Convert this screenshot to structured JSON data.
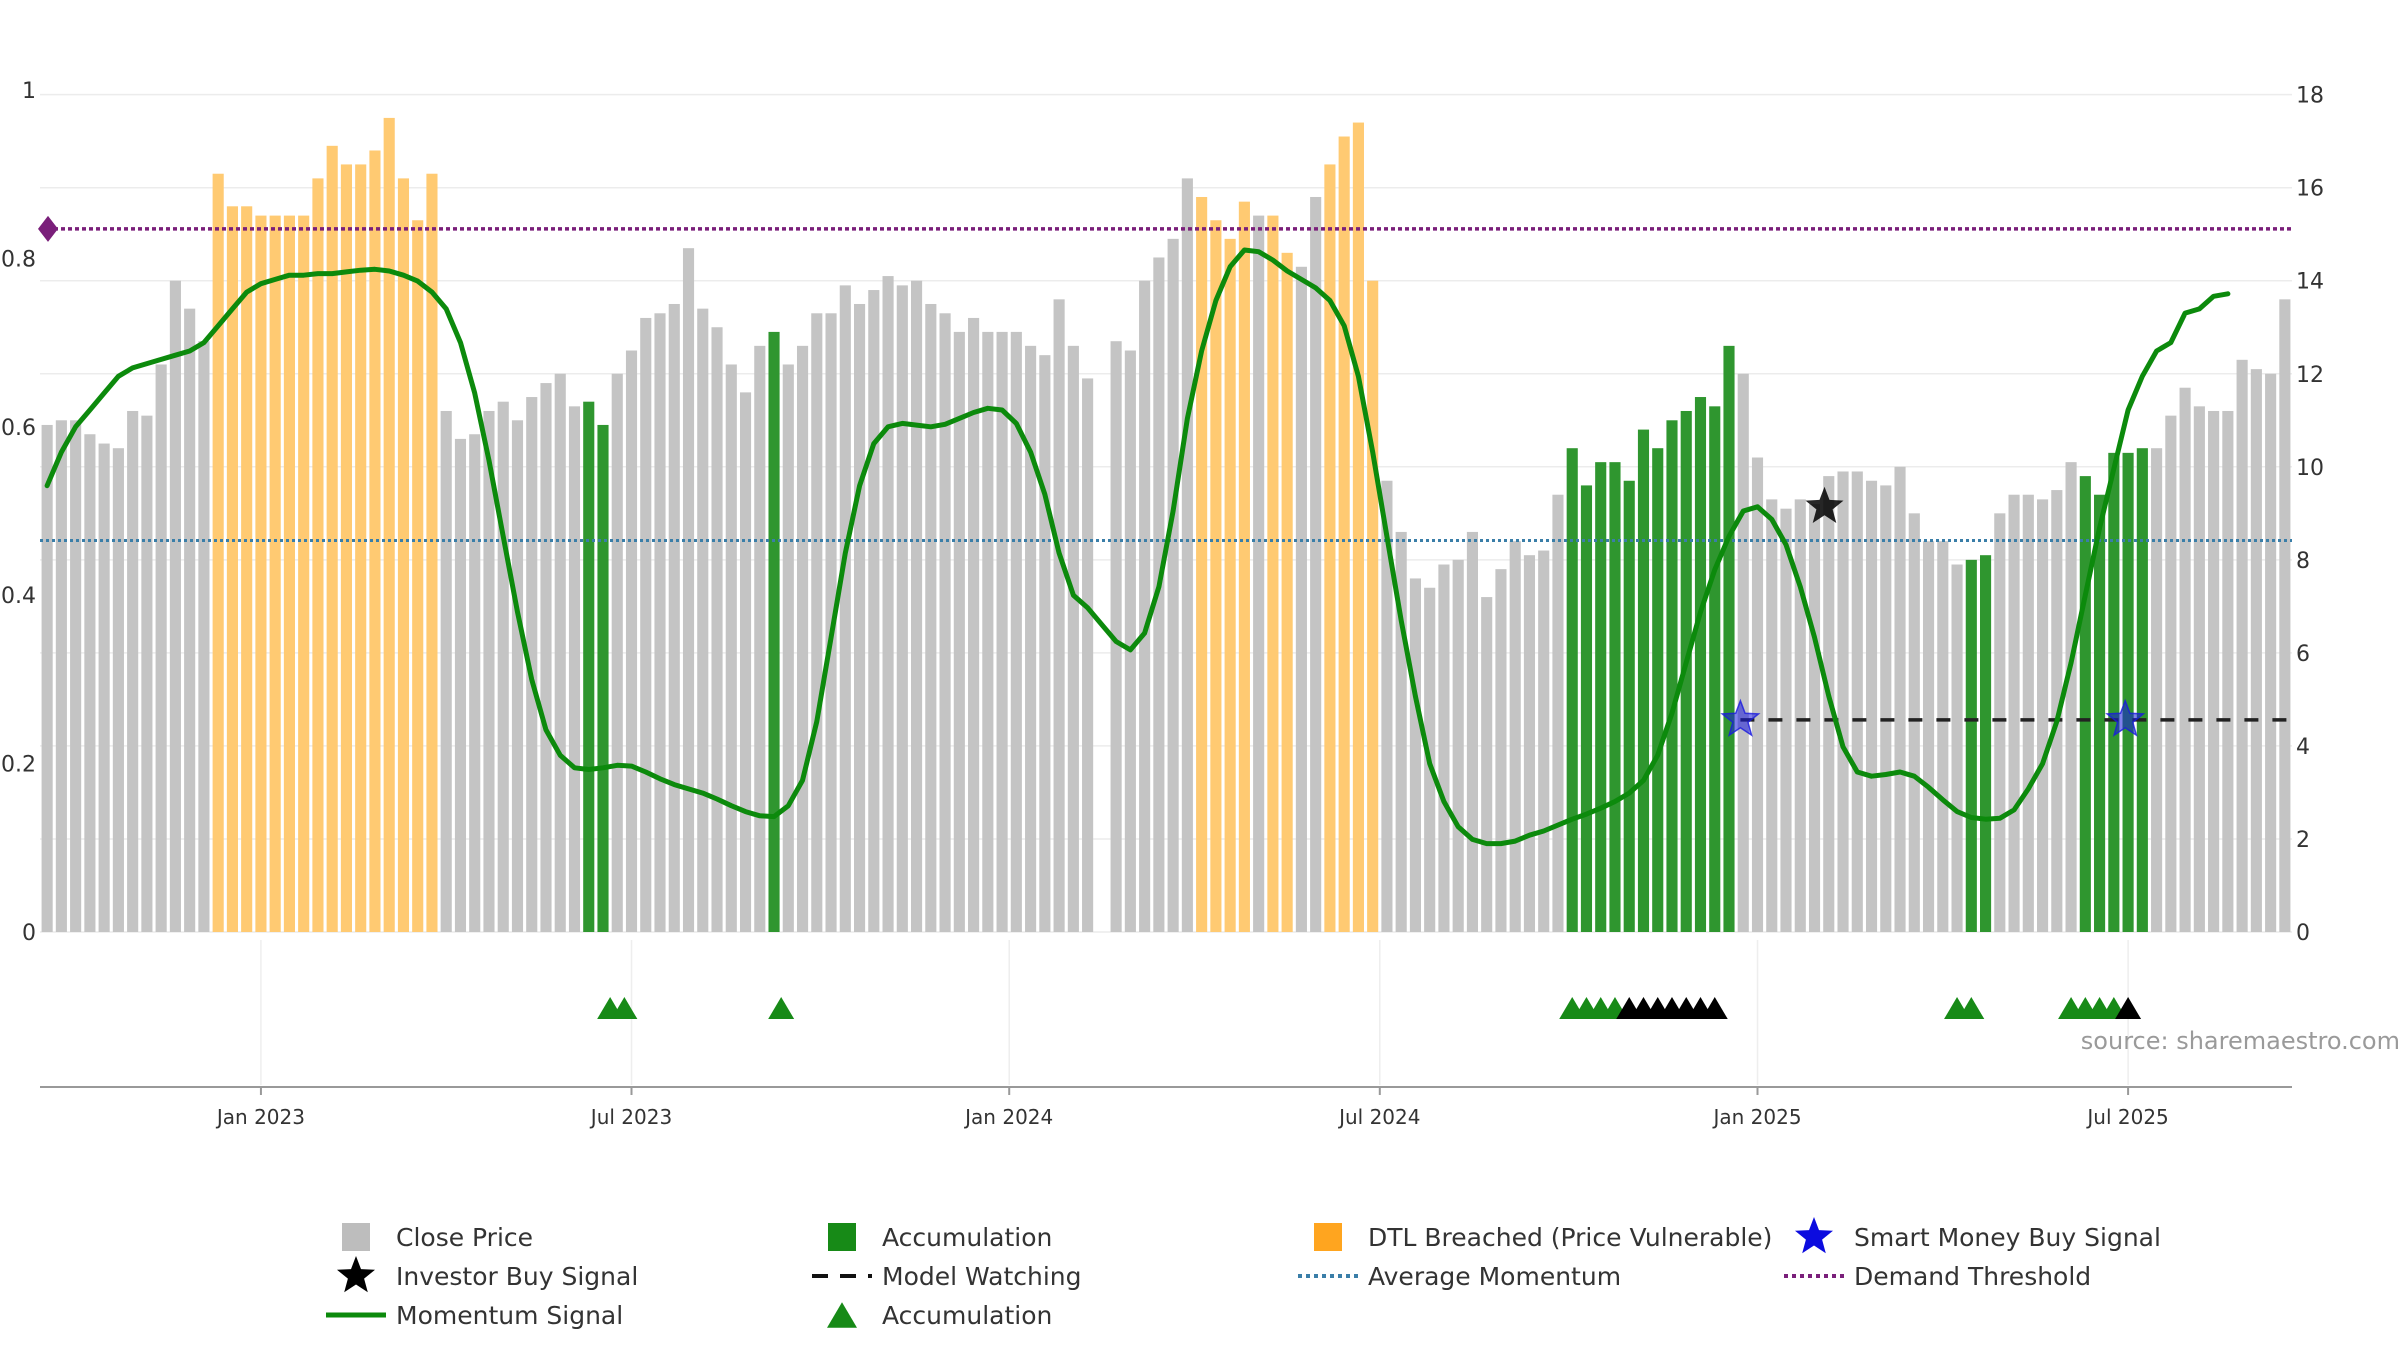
{
  "source_label": "source: sharemaestro.com",
  "colors": {
    "close": "#c4c4c4",
    "accumulation": "#2f962f",
    "dtl": "#ffca72",
    "momentum": "#0c8a0c",
    "avg_momentum": "#3a7ea8",
    "demand": "#7a1f7a",
    "watching": "#222222",
    "smart_money": "#1a1adf",
    "investor": "#000000"
  },
  "chart_data": {
    "type": "bar",
    "title": "",
    "xlabel": "",
    "ylabel": "",
    "left_axis": {
      "ticks": [
        "0",
        "0.2",
        "0.4",
        "0.6",
        "0.8",
        "1"
      ],
      "range": [
        0,
        1
      ]
    },
    "right_axis": {
      "ticks": [
        "0",
        "2",
        "4",
        "6",
        "8",
        "10",
        "12",
        "14",
        "16",
        "18"
      ],
      "range": [
        0,
        18.1
      ]
    },
    "x_ticks": [
      {
        "label": "Jan 2023",
        "index": 15
      },
      {
        "label": "Jul 2023",
        "index": 41
      },
      {
        "label": "Jan 2024",
        "index": 67.5
      },
      {
        "label": "Jul 2024",
        "index": 93.5
      },
      {
        "label": "Jan 2025",
        "index": 120
      },
      {
        "label": "Jul 2025",
        "index": 146
      }
    ],
    "bar_categories": {
      "C": "Close Price",
      "A": "Accumulation",
      "D": "DTL Breached (Price Vulnerable)"
    },
    "close_price": [
      10.9,
      11.0,
      11.0,
      10.7,
      10.5,
      10.4,
      11.2,
      11.1,
      12.2,
      14.0,
      13.4,
      12.7,
      16.3,
      15.6,
      15.6,
      15.4,
      15.4,
      15.4,
      15.4,
      16.2,
      16.9,
      16.5,
      16.5,
      16.8,
      17.5,
      16.2,
      15.3,
      16.3,
      11.2,
      10.6,
      10.7,
      11.2,
      11.4,
      11.0,
      11.5,
      11.8,
      12.0,
      11.3,
      11.4,
      10.9,
      12.0,
      12.5,
      13.2,
      13.3,
      13.5,
      14.7,
      13.4,
      13.0,
      12.2,
      11.6,
      12.6,
      12.9,
      12.2,
      12.6,
      13.3,
      13.3,
      13.9,
      13.5,
      13.8,
      14.1,
      13.9,
      14.0,
      13.5,
      13.3,
      12.9,
      13.2,
      12.9,
      12.9,
      12.9,
      12.6,
      12.4,
      13.6,
      12.6,
      11.9,
      0.0,
      12.7,
      12.5,
      14.0,
      14.5,
      14.9,
      16.2,
      15.8,
      15.3,
      14.9,
      15.7,
      15.4,
      15.4,
      14.6,
      14.3,
      15.8,
      16.5,
      17.1,
      17.4,
      14.0,
      9.7,
      8.6,
      7.6,
      7.4,
      7.9,
      8.0,
      8.6,
      7.2,
      7.8,
      8.4,
      8.1,
      8.2,
      9.4,
      10.4,
      9.6,
      10.1,
      10.1,
      9.7,
      10.8,
      10.4,
      11.0,
      11.2,
      11.5,
      11.3,
      12.6,
      12.0,
      10.2,
      9.3,
      9.1,
      9.3,
      9.2,
      9.8,
      9.9,
      9.9,
      9.7,
      9.6,
      10.0,
      9.0,
      8.4,
      8.4,
      7.9,
      8.0,
      8.1,
      9.0,
      9.4,
      9.4,
      9.3,
      9.5,
      10.1,
      9.8,
      9.4,
      10.3,
      10.3,
      10.4,
      10.4,
      11.1,
      11.7,
      11.3,
      11.2,
      11.2,
      12.3,
      12.1,
      12.0,
      13.6
    ],
    "bar_types": "CCCCCCCCCCCCDDDDDDDDDDDDDDDDCCCCCCCCCCAACCCCCCCCCCCACCCCCCCCCCCCCCCCCCCCCCCCCCCCCDDDDCDDCCDDDDCCCCCCCCCCCCCAAAAAAAAAAAACCCCCCCCCCCCCCCCAACCCCCCAAAAACCCCCCCCCCCC",
    "momentum_signal": [
      0.53,
      0.57,
      0.6,
      0.62,
      0.64,
      0.66,
      0.67,
      0.675,
      0.68,
      0.685,
      0.69,
      0.7,
      0.72,
      0.74,
      0.76,
      0.77,
      0.775,
      0.78,
      0.78,
      0.782,
      0.782,
      0.784,
      0.786,
      0.787,
      0.785,
      0.78,
      0.773,
      0.76,
      0.74,
      0.7,
      0.64,
      0.56,
      0.47,
      0.38,
      0.3,
      0.24,
      0.21,
      0.195,
      0.193,
      0.195,
      0.198,
      0.197,
      0.19,
      0.182,
      0.175,
      0.17,
      0.165,
      0.158,
      0.15,
      0.143,
      0.138,
      0.137,
      0.15,
      0.18,
      0.25,
      0.35,
      0.45,
      0.53,
      0.58,
      0.6,
      0.604,
      0.602,
      0.6,
      0.603,
      0.61,
      0.617,
      0.622,
      0.62,
      0.604,
      0.57,
      0.52,
      0.45,
      0.4,
      0.385,
      0.365,
      0.345,
      0.335,
      0.355,
      0.41,
      0.5,
      0.61,
      0.69,
      0.75,
      0.79,
      0.81,
      0.808,
      0.798,
      0.785,
      0.775,
      0.765,
      0.75,
      0.72,
      0.66,
      0.57,
      0.47,
      0.37,
      0.28,
      0.2,
      0.155,
      0.125,
      0.11,
      0.105,
      0.105,
      0.108,
      0.115,
      0.12,
      0.127,
      0.134,
      0.14,
      0.147,
      0.155,
      0.165,
      0.18,
      0.21,
      0.26,
      0.32,
      0.38,
      0.43,
      0.47,
      0.5,
      0.505,
      0.49,
      0.46,
      0.41,
      0.35,
      0.28,
      0.22,
      0.19,
      0.185,
      0.187,
      0.19,
      0.185,
      0.172,
      0.157,
      0.143,
      0.136,
      0.134,
      0.135,
      0.145,
      0.17,
      0.2,
      0.25,
      0.32,
      0.4,
      0.48,
      0.55,
      0.62,
      0.66,
      0.69,
      0.7,
      0.735,
      0.74,
      0.755,
      0.758
    ],
    "average_momentum": 0.465,
    "demand_threshold": 0.835,
    "model_watching": {
      "from_index": 118.8,
      "to_index": 157.5,
      "value": 0.252
    },
    "smart_money_signals": [
      {
        "index": 118.8,
        "value": 0.252
      },
      {
        "index": 145.8,
        "value": 0.252
      }
    ],
    "investor_buy_signals": [
      {
        "index": 124.7,
        "value": 0.505
      }
    ],
    "accumulation_markers": [
      {
        "index": 39.5,
        "color": "green"
      },
      {
        "index": 40.5,
        "color": "green"
      },
      {
        "index": 51.5,
        "color": "green"
      },
      {
        "index": 107.0,
        "color": "green"
      },
      {
        "index": 108.0,
        "color": "green"
      },
      {
        "index": 109.0,
        "color": "green"
      },
      {
        "index": 110.0,
        "color": "green"
      },
      {
        "index": 111.0,
        "color": "black"
      },
      {
        "index": 112.0,
        "color": "black"
      },
      {
        "index": 113.0,
        "color": "black"
      },
      {
        "index": 114.0,
        "color": "black"
      },
      {
        "index": 115.0,
        "color": "black"
      },
      {
        "index": 116.0,
        "color": "black"
      },
      {
        "index": 117.0,
        "color": "black"
      },
      {
        "index": 134.0,
        "color": "green"
      },
      {
        "index": 135.0,
        "color": "green"
      },
      {
        "index": 142.0,
        "color": "green"
      },
      {
        "index": 143.0,
        "color": "green"
      },
      {
        "index": 144.0,
        "color": "green"
      },
      {
        "index": 145.0,
        "color": "green"
      },
      {
        "index": 146.0,
        "color": "black"
      }
    ],
    "legend": [
      {
        "label": "Close Price",
        "kind": "square",
        "color": "#bdbdbd"
      },
      {
        "label": "Accumulation",
        "kind": "square",
        "color": "#178a17"
      },
      {
        "label": "DTL Breached (Price Vulnerable)",
        "kind": "square",
        "color": "#ffa51f"
      },
      {
        "label": "Smart Money Buy Signal",
        "kind": "star",
        "color": "#0c0cdf"
      },
      {
        "label": "Investor Buy Signal",
        "kind": "star",
        "color": "#000000"
      },
      {
        "label": "Model Watching",
        "kind": "dashed",
        "color": "#111111"
      },
      {
        "label": "Average Momentum",
        "kind": "dotted",
        "color": "#3a7ea8"
      },
      {
        "label": "Demand Threshold",
        "kind": "dotted",
        "color": "#7a1f7a"
      },
      {
        "label": "Momentum Signal",
        "kind": "line",
        "color": "#0c8a0c"
      },
      {
        "label": "Accumulation",
        "kind": "triangle",
        "color": "#178a17"
      }
    ]
  }
}
